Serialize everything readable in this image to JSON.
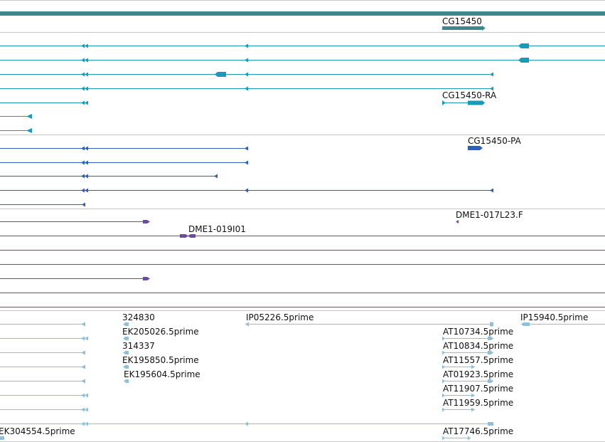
{
  "colors": {
    "gene": "#3a8a8c",
    "transcript": "#1a9ab8",
    "protein": "#2e5fb7",
    "clone": "#6d4a9e",
    "est": "#8ec0dc",
    "separator": "#c8c8c8"
  },
  "gene_track": {
    "label": "CG15450"
  },
  "transcript_track": {
    "label": "CG15450-RA",
    "rows": [
      {
        "arrows": "left",
        "features": [
          "exon",
          "exon",
          "exon"
        ]
      },
      {
        "arrows": "left",
        "features": [
          "exon",
          "exon",
          "exon"
        ]
      },
      {
        "arrows": "left",
        "features": [
          "exon",
          "exon",
          "exon",
          "exon"
        ]
      },
      {
        "arrows": "left",
        "features": [
          "exon",
          "exon",
          "exon"
        ]
      },
      {
        "arrows": "left",
        "features": [
          "exon",
          "cds"
        ]
      },
      {
        "arrows": "left",
        "features": [
          "exon"
        ]
      },
      {
        "arrows": "left",
        "features": [
          "exon"
        ]
      }
    ]
  },
  "protein_track": {
    "label": "CG15450-PA"
  },
  "clone_track": {
    "labels": [
      "DME1-017L23.F",
      "DME1-019I01"
    ]
  },
  "est_track": {
    "labels": [
      "324830",
      "IP05226.5prime",
      "IP15940.5prime",
      "EK205026.5prime",
      "AT10734.5prime",
      "314337",
      "AT10834.5prime",
      "EK195850.5prime",
      "AT11557.5prime",
      "EK195604.5prime",
      "AT01923.5prime",
      "AT11907.5prime",
      "AT11959.5prime",
      "EK304554.5prime",
      "AT17746.5prime"
    ]
  }
}
